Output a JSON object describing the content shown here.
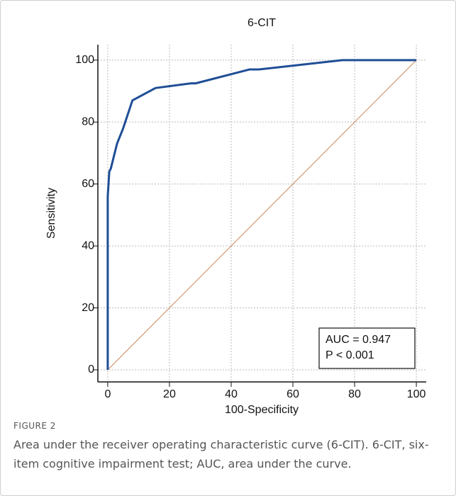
{
  "chart_data": {
    "type": "line",
    "title": "6-CIT",
    "x_label": "100-Specificity",
    "y_label": "Sensitivity",
    "xlim": [
      -3.2,
      103.2
    ],
    "ylim": [
      -3.9,
      105
    ],
    "xticks": [
      0,
      20,
      40,
      60,
      80,
      100
    ],
    "yticks": [
      0,
      20,
      40,
      60,
      80,
      100
    ],
    "grid": true,
    "series": [
      {
        "color": "#1f4e96",
        "x": [
          0,
          0,
          0.5,
          1,
          3,
          5,
          7,
          8,
          15.5,
          27,
          28.5,
          46,
          49,
          76,
          100
        ],
        "values": [
          0,
          56,
          64,
          65,
          73,
          78,
          84,
          87,
          91,
          92.5,
          92.5,
          97,
          97,
          100,
          100
        ]
      }
    ],
    "reference_line": {
      "color": "#c8855a",
      "x": [
        0,
        100
      ],
      "values": [
        0,
        100
      ]
    },
    "annotations": [
      "AUC = 0.947",
      "P < 0.001"
    ]
  },
  "figure": {
    "label": "FIGURE 2",
    "text": "Area under the receiver operating characteristic curve (6-CIT). 6-CIT, six-item cognitive impairment test; AUC, area under the curve."
  }
}
